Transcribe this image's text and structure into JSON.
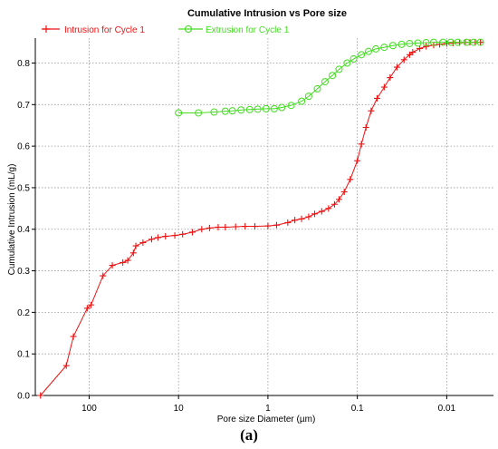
{
  "caption": "(a)",
  "chart_data": {
    "type": "line",
    "title": "Cumulative Intrusion vs Pore size",
    "xlabel": "Pore size Diameter (µm)",
    "ylabel": "Cumulative Intrusion (mL/g)",
    "x_scale": "log",
    "x_reversed": true,
    "xlim": [
      400,
      0.003
    ],
    "ylim": [
      0,
      0.86
    ],
    "x_ticks": [
      {
        "value": 100,
        "label": "100"
      },
      {
        "value": 10,
        "label": "10"
      },
      {
        "value": 1,
        "label": "1"
      },
      {
        "value": 0.1,
        "label": "0.1"
      },
      {
        "value": 0.01,
        "label": "0.01"
      }
    ],
    "y_ticks": [
      {
        "value": 0.0,
        "label": "0.0"
      },
      {
        "value": 0.1,
        "label": "0.1"
      },
      {
        "value": 0.2,
        "label": "0.2"
      },
      {
        "value": 0.3,
        "label": "0.3"
      },
      {
        "value": 0.4,
        "label": "0.4"
      },
      {
        "value": 0.5,
        "label": "0.5"
      },
      {
        "value": 0.6,
        "label": "0.6"
      },
      {
        "value": 0.7,
        "label": "0.7"
      },
      {
        "value": 0.8,
        "label": "0.8"
      }
    ],
    "grid": true,
    "legend_position": "top-left",
    "series": [
      {
        "name": "Intrusion for Cycle 1",
        "color": "#ee1111",
        "marker": "plus",
        "points": [
          [
            350,
            0.0
          ],
          [
            180,
            0.072
          ],
          [
            150,
            0.142
          ],
          [
            105,
            0.21
          ],
          [
            95,
            0.218
          ],
          [
            70,
            0.288
          ],
          [
            55,
            0.313
          ],
          [
            42,
            0.32
          ],
          [
            37,
            0.325
          ],
          [
            32,
            0.343
          ],
          [
            30,
            0.36
          ],
          [
            25,
            0.368
          ],
          [
            20,
            0.376
          ],
          [
            17,
            0.38
          ],
          [
            14,
            0.383
          ],
          [
            11,
            0.385
          ],
          [
            9,
            0.388
          ],
          [
            7,
            0.393
          ],
          [
            5.5,
            0.4
          ],
          [
            4.5,
            0.403
          ],
          [
            3.6,
            0.405
          ],
          [
            3,
            0.405
          ],
          [
            2.3,
            0.406
          ],
          [
            1.8,
            0.407
          ],
          [
            1.4,
            0.407
          ],
          [
            1.0,
            0.408
          ],
          [
            0.8,
            0.41
          ],
          [
            0.6,
            0.416
          ],
          [
            0.5,
            0.422
          ],
          [
            0.42,
            0.425
          ],
          [
            0.35,
            0.43
          ],
          [
            0.3,
            0.437
          ],
          [
            0.25,
            0.443
          ],
          [
            0.21,
            0.45
          ],
          [
            0.18,
            0.46
          ],
          [
            0.16,
            0.472
          ],
          [
            0.14,
            0.49
          ],
          [
            0.12,
            0.52
          ],
          [
            0.1,
            0.565
          ],
          [
            0.09,
            0.605
          ],
          [
            0.08,
            0.645
          ],
          [
            0.07,
            0.685
          ],
          [
            0.06,
            0.715
          ],
          [
            0.05,
            0.742
          ],
          [
            0.043,
            0.765
          ],
          [
            0.036,
            0.79
          ],
          [
            0.03,
            0.808
          ],
          [
            0.026,
            0.82
          ],
          [
            0.024,
            0.826
          ],
          [
            0.02,
            0.835
          ],
          [
            0.017,
            0.84
          ],
          [
            0.014,
            0.843
          ],
          [
            0.012,
            0.845
          ],
          [
            0.01,
            0.847
          ],
          [
            0.0085,
            0.848
          ],
          [
            0.0072,
            0.849
          ],
          [
            0.0062,
            0.85
          ],
          [
            0.0055,
            0.85
          ],
          [
            0.0048,
            0.85
          ],
          [
            0.0042,
            0.85
          ]
        ]
      },
      {
        "name": "Extrusion for Cycle 1",
        "color": "#44dd22",
        "marker": "circle",
        "points": [
          [
            10,
            0.68
          ],
          [
            6,
            0.68
          ],
          [
            4,
            0.682
          ],
          [
            3,
            0.684
          ],
          [
            2.5,
            0.685
          ],
          [
            2.0,
            0.687
          ],
          [
            1.6,
            0.688
          ],
          [
            1.3,
            0.689
          ],
          [
            1.05,
            0.69
          ],
          [
            0.85,
            0.69
          ],
          [
            0.7,
            0.693
          ],
          [
            0.55,
            0.698
          ],
          [
            0.42,
            0.708
          ],
          [
            0.35,
            0.72
          ],
          [
            0.28,
            0.738
          ],
          [
            0.23,
            0.755
          ],
          [
            0.19,
            0.77
          ],
          [
            0.16,
            0.785
          ],
          [
            0.13,
            0.8
          ],
          [
            0.11,
            0.81
          ],
          [
            0.09,
            0.82
          ],
          [
            0.075,
            0.828
          ],
          [
            0.062,
            0.834
          ],
          [
            0.05,
            0.838
          ],
          [
            0.04,
            0.842
          ],
          [
            0.032,
            0.845
          ],
          [
            0.026,
            0.847
          ],
          [
            0.021,
            0.848
          ],
          [
            0.017,
            0.849
          ],
          [
            0.014,
            0.85
          ],
          [
            0.011,
            0.85
          ],
          [
            0.009,
            0.85
          ],
          [
            0.0075,
            0.85
          ],
          [
            0.006,
            0.85
          ],
          [
            0.005,
            0.85
          ],
          [
            0.0042,
            0.85
          ]
        ]
      }
    ]
  }
}
